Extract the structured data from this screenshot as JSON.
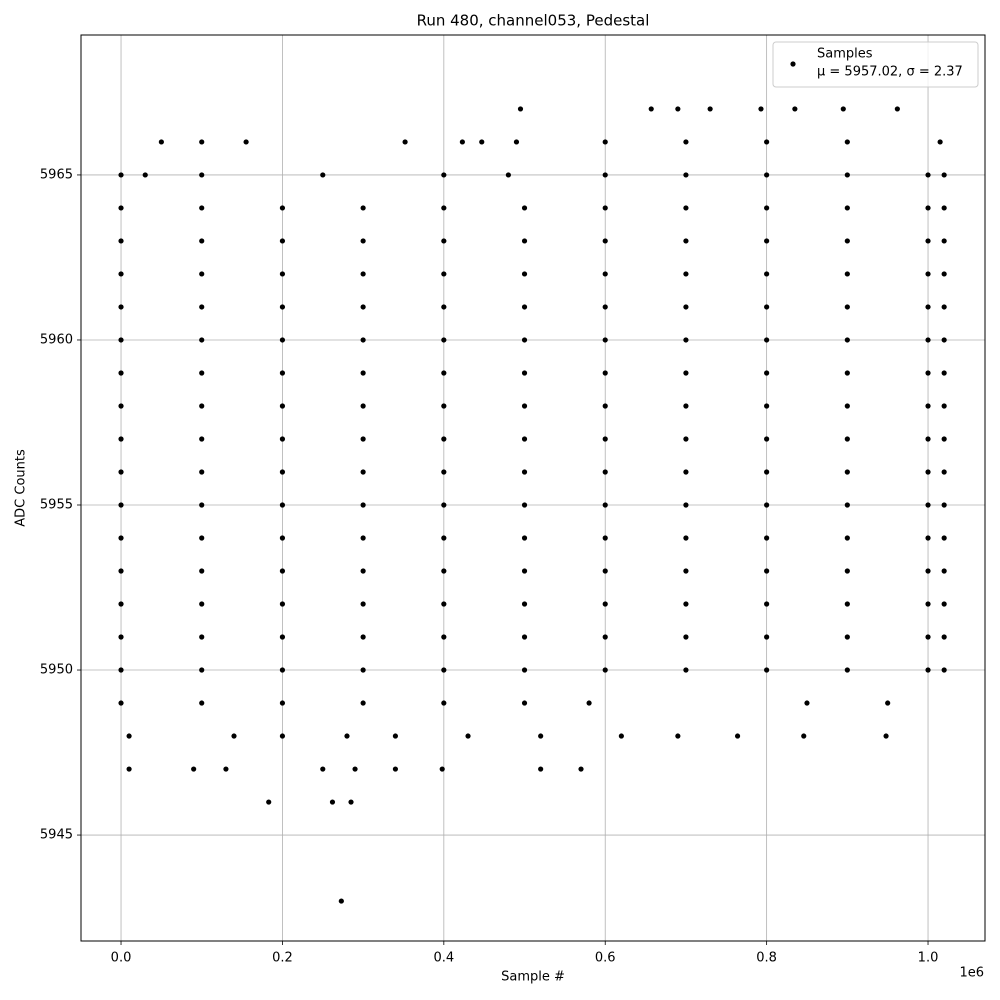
{
  "chart_data": {
    "type": "scatter",
    "title": "Run 480, channel053, Pedestal",
    "x_label": "Sample #",
    "y_label": "ADC Counts",
    "x_offset_label": "1e6",
    "grid": true,
    "legend_position": "upper right",
    "legend_note": "μ = 5957.02, σ = 2.37",
    "xlim": [
      -49600,
      1070600
    ],
    "ylim": [
      5941.79,
      5969.24
    ],
    "xticks": [
      {
        "value": 0,
        "label": "0.0"
      },
      {
        "value": 200000,
        "label": "0.2"
      },
      {
        "value": 400000,
        "label": "0.4"
      },
      {
        "value": 600000,
        "label": "0.6"
      },
      {
        "value": 800000,
        "label": "0.8"
      },
      {
        "value": 1000000,
        "label": "1.0"
      }
    ],
    "yticks": [
      5945,
      5950,
      5955,
      5960,
      5965
    ],
    "series": [
      {
        "name": "Samples",
        "color": "#000000",
        "x": [
          273000,
          183000,
          262000,
          285000,
          10000,
          90000,
          130000,
          250000,
          290000,
          340000,
          398000,
          520000,
          570000,
          10000,
          140000,
          200000,
          280000,
          340000,
          430000,
          520000,
          620000,
          690000,
          764000,
          846000,
          948000,
          0,
          100000,
          200000,
          300000,
          400000,
          500000,
          580000,
          850000,
          950000,
          0,
          100000,
          200000,
          300000,
          400000,
          500000,
          600000,
          700000,
          800000,
          900000,
          1000000,
          1020000,
          0,
          100000,
          200000,
          300000,
          400000,
          500000,
          600000,
          700000,
          800000,
          900000,
          1000000,
          1020000,
          0,
          100000,
          200000,
          300000,
          400000,
          500000,
          600000,
          700000,
          800000,
          900000,
          1000000,
          1020000,
          0,
          100000,
          200000,
          300000,
          400000,
          500000,
          600000,
          700000,
          800000,
          900000,
          1000000,
          1020000,
          0,
          100000,
          200000,
          300000,
          400000,
          500000,
          600000,
          700000,
          800000,
          900000,
          1000000,
          1020000,
          0,
          100000,
          200000,
          300000,
          400000,
          500000,
          600000,
          700000,
          800000,
          900000,
          1000000,
          1020000,
          0,
          100000,
          200000,
          300000,
          400000,
          500000,
          600000,
          700000,
          800000,
          900000,
          1000000,
          1020000,
          0,
          100000,
          200000,
          300000,
          400000,
          500000,
          600000,
          700000,
          800000,
          900000,
          1000000,
          1020000,
          0,
          100000,
          200000,
          300000,
          400000,
          500000,
          600000,
          700000,
          800000,
          900000,
          1000000,
          1020000,
          0,
          100000,
          200000,
          300000,
          400000,
          500000,
          600000,
          700000,
          800000,
          900000,
          1000000,
          1020000,
          0,
          100000,
          200000,
          300000,
          400000,
          500000,
          600000,
          700000,
          800000,
          900000,
          1000000,
          1020000,
          0,
          100000,
          200000,
          300000,
          400000,
          500000,
          600000,
          700000,
          800000,
          900000,
          1000000,
          1020000,
          0,
          100000,
          200000,
          300000,
          400000,
          500000,
          600000,
          700000,
          800000,
          900000,
          1000000,
          1020000,
          0,
          100000,
          200000,
          300000,
          400000,
          500000,
          600000,
          700000,
          800000,
          900000,
          1000000,
          1020000,
          0,
          100000,
          200000,
          300000,
          400000,
          500000,
          600000,
          700000,
          800000,
          900000,
          1000000,
          1020000,
          0,
          30000,
          100000,
          250000,
          400000,
          480000,
          600000,
          700000,
          800000,
          900000,
          1000000,
          1020000,
          50000,
          100000,
          155000,
          352000,
          423000,
          447000,
          490000,
          600000,
          700000,
          800000,
          900000,
          1015000,
          495000,
          657000,
          690000,
          730000,
          793000,
          835000,
          895000,
          962000
        ],
        "values": [
          5943,
          5946,
          5946,
          5946,
          5947,
          5947,
          5947,
          5947,
          5947,
          5947,
          5947,
          5947,
          5947,
          5948,
          5948,
          5948,
          5948,
          5948,
          5948,
          5948,
          5948,
          5948,
          5948,
          5948,
          5948,
          5949,
          5949,
          5949,
          5949,
          5949,
          5949,
          5949,
          5949,
          5949,
          5950,
          5950,
          5950,
          5950,
          5950,
          5950,
          5950,
          5950,
          5950,
          5950,
          5950,
          5950,
          5951,
          5951,
          5951,
          5951,
          5951,
          5951,
          5951,
          5951,
          5951,
          5951,
          5951,
          5951,
          5952,
          5952,
          5952,
          5952,
          5952,
          5952,
          5952,
          5952,
          5952,
          5952,
          5952,
          5952,
          5953,
          5953,
          5953,
          5953,
          5953,
          5953,
          5953,
          5953,
          5953,
          5953,
          5953,
          5953,
          5954,
          5954,
          5954,
          5954,
          5954,
          5954,
          5954,
          5954,
          5954,
          5954,
          5954,
          5954,
          5955,
          5955,
          5955,
          5955,
          5955,
          5955,
          5955,
          5955,
          5955,
          5955,
          5955,
          5955,
          5956,
          5956,
          5956,
          5956,
          5956,
          5956,
          5956,
          5956,
          5956,
          5956,
          5956,
          5956,
          5957,
          5957,
          5957,
          5957,
          5957,
          5957,
          5957,
          5957,
          5957,
          5957,
          5957,
          5957,
          5958,
          5958,
          5958,
          5958,
          5958,
          5958,
          5958,
          5958,
          5958,
          5958,
          5958,
          5958,
          5959,
          5959,
          5959,
          5959,
          5959,
          5959,
          5959,
          5959,
          5959,
          5959,
          5959,
          5959,
          5960,
          5960,
          5960,
          5960,
          5960,
          5960,
          5960,
          5960,
          5960,
          5960,
          5960,
          5960,
          5961,
          5961,
          5961,
          5961,
          5961,
          5961,
          5961,
          5961,
          5961,
          5961,
          5961,
          5961,
          5962,
          5962,
          5962,
          5962,
          5962,
          5962,
          5962,
          5962,
          5962,
          5962,
          5962,
          5962,
          5963,
          5963,
          5963,
          5963,
          5963,
          5963,
          5963,
          5963,
          5963,
          5963,
          5963,
          5963,
          5964,
          5964,
          5964,
          5964,
          5964,
          5964,
          5964,
          5964,
          5964,
          5964,
          5964,
          5964,
          5965,
          5965,
          5965,
          5965,
          5965,
          5965,
          5965,
          5965,
          5965,
          5965,
          5965,
          5965,
          5966,
          5966,
          5966,
          5966,
          5966,
          5966,
          5966,
          5966,
          5966,
          5966,
          5966,
          5966,
          5967,
          5967,
          5967,
          5967,
          5967,
          5967,
          5967,
          5967
        ]
      }
    ]
  }
}
